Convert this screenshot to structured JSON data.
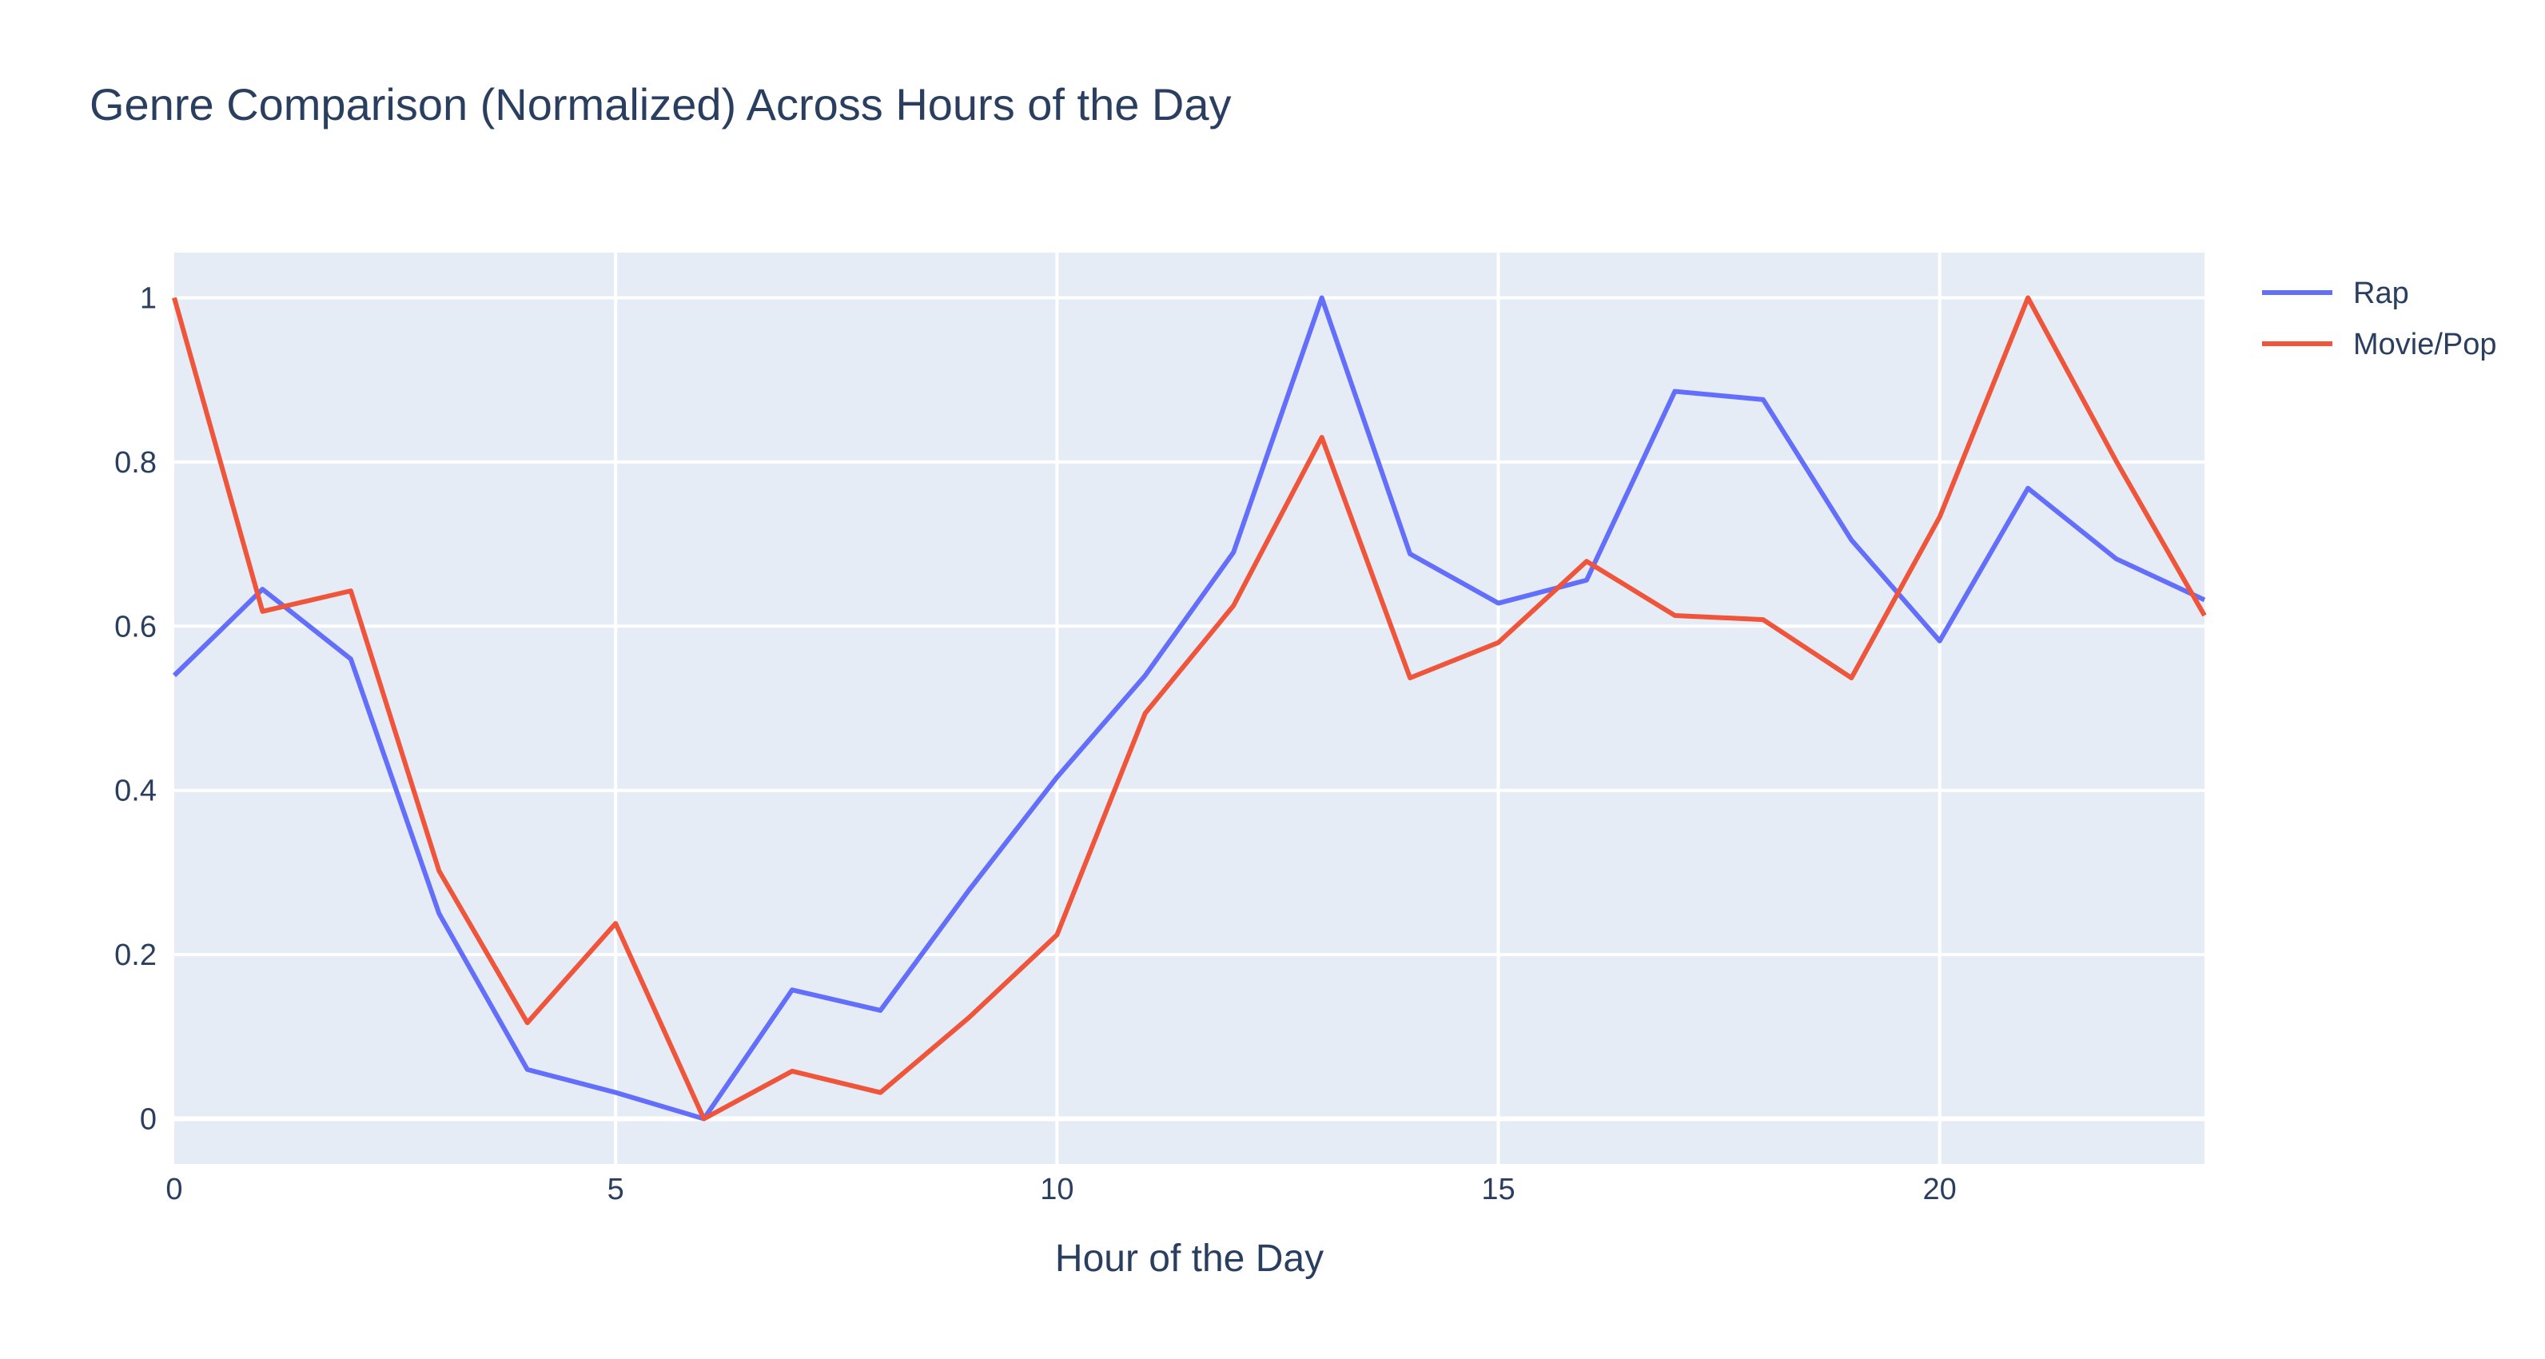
{
  "chart_data": {
    "type": "line",
    "title": "Genre Comparison (Normalized) Across Hours of the Day",
    "xlabel": "Hour of the Day",
    "ylabel": "",
    "xlim": [
      0,
      23
    ],
    "ylim": [
      -0.055,
      1.055
    ],
    "xticks": [
      0,
      5,
      10,
      15,
      20
    ],
    "yticks": [
      0,
      0.2,
      0.4,
      0.6,
      0.8,
      1
    ],
    "ytick_labels": [
      "0",
      "0.2",
      "0.4",
      "0.6",
      "0.8",
      "1"
    ],
    "grid": true,
    "legend_position": "top-right",
    "x": [
      0,
      1,
      2,
      3,
      4,
      5,
      6,
      7,
      8,
      9,
      10,
      11,
      12,
      13,
      14,
      15,
      16,
      17,
      18,
      19,
      20,
      21,
      22,
      23
    ],
    "series": [
      {
        "name": "Rap",
        "color": "#636efa",
        "values": [
          0.54,
          0.645,
          0.56,
          0.25,
          0.06,
          0.032,
          0.0,
          0.157,
          0.132,
          0.278,
          0.416,
          0.54,
          0.69,
          1.0,
          0.688,
          0.628,
          0.656,
          0.886,
          0.876,
          0.705,
          0.582,
          0.768,
          0.682,
          0.632
        ]
      },
      {
        "name": "Movie/Pop",
        "color": "#ef553b",
        "values": [
          1.0,
          0.618,
          0.643,
          0.302,
          0.117,
          0.238,
          0.0,
          0.058,
          0.032,
          0.123,
          0.224,
          0.494,
          0.625,
          0.83,
          0.537,
          0.58,
          0.679,
          0.613,
          0.608,
          0.537,
          0.733,
          1.0,
          0.801,
          0.613
        ]
      }
    ]
  }
}
